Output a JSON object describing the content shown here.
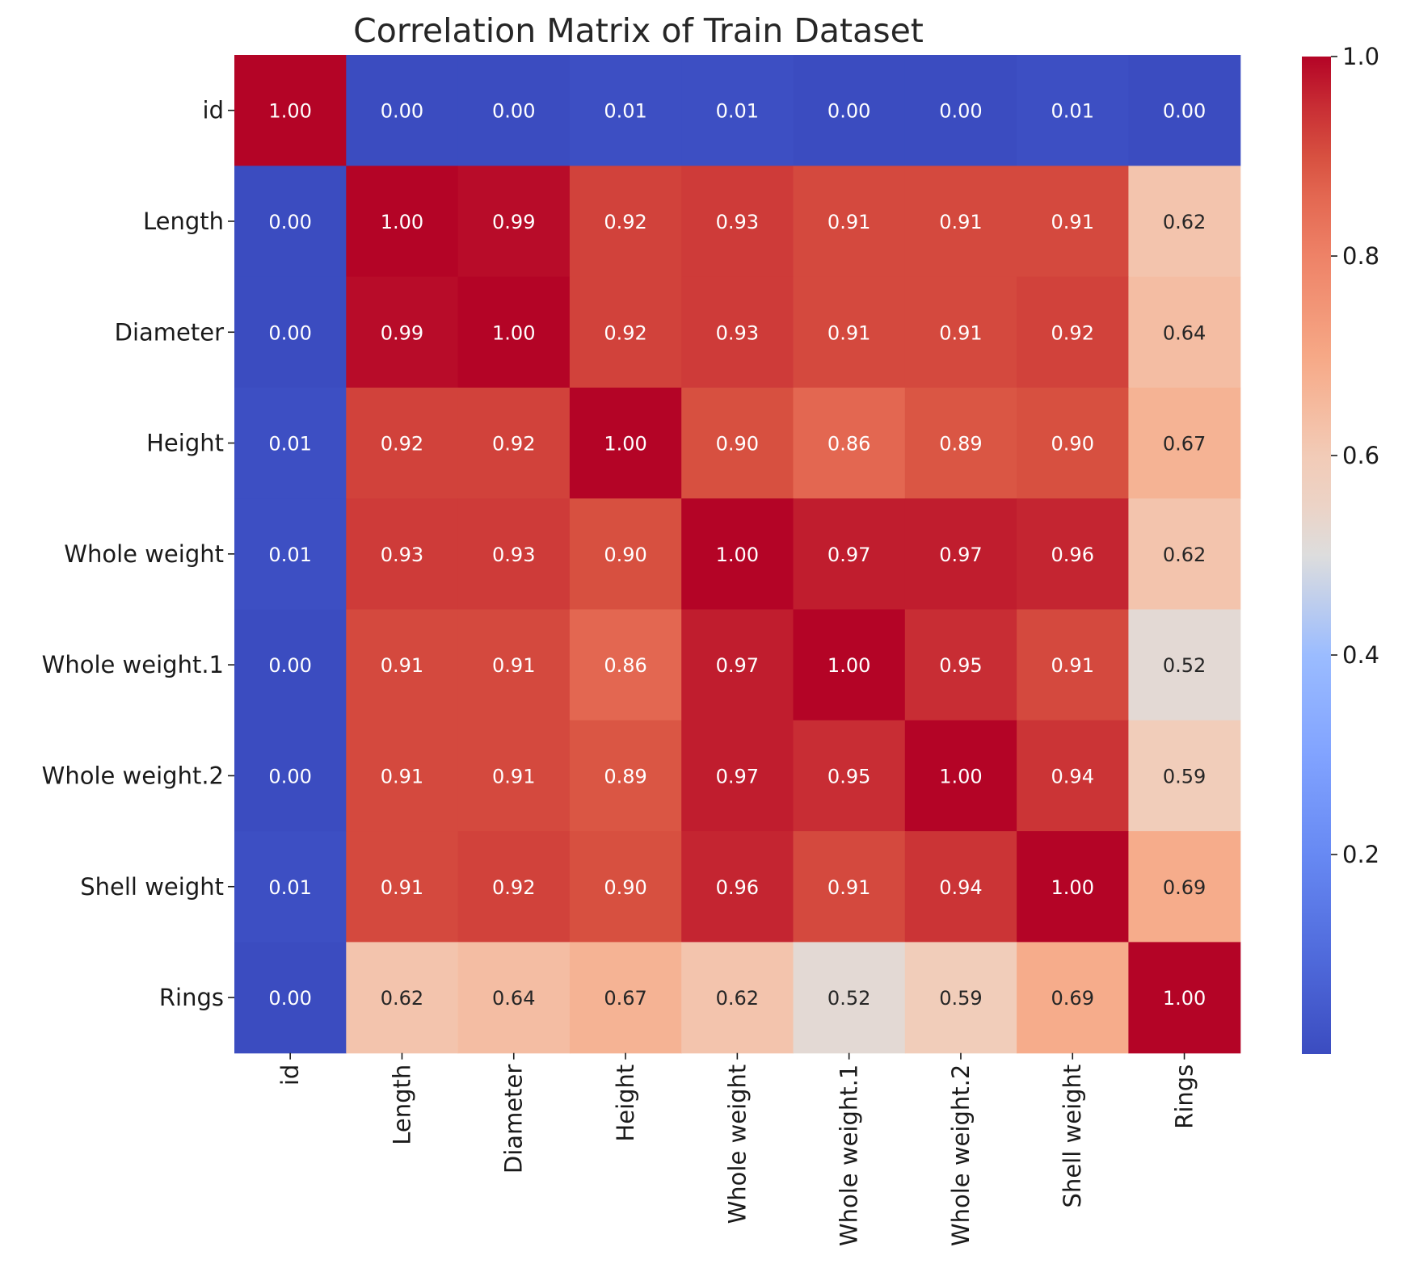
{
  "chart_data": {
    "type": "heatmap",
    "title": "Correlation Matrix of Train Dataset",
    "xlabel": "",
    "ylabel": "",
    "labels": [
      "id",
      "Length",
      "Diameter",
      "Height",
      "Whole weight",
      "Whole weight.1",
      "Whole weight.2",
      "Shell weight",
      "Rings"
    ],
    "values": [
      [
        1.0,
        0.0,
        0.0,
        0.01,
        0.01,
        0.0,
        0.0,
        0.01,
        0.0
      ],
      [
        0.0,
        1.0,
        0.99,
        0.92,
        0.93,
        0.91,
        0.91,
        0.91,
        0.62
      ],
      [
        0.0,
        0.99,
        1.0,
        0.92,
        0.93,
        0.91,
        0.91,
        0.92,
        0.64
      ],
      [
        0.01,
        0.92,
        0.92,
        1.0,
        0.9,
        0.86,
        0.89,
        0.9,
        0.67
      ],
      [
        0.01,
        0.93,
        0.93,
        0.9,
        1.0,
        0.97,
        0.97,
        0.96,
        0.62
      ],
      [
        0.0,
        0.91,
        0.91,
        0.86,
        0.97,
        1.0,
        0.95,
        0.91,
        0.52
      ],
      [
        0.0,
        0.91,
        0.91,
        0.89,
        0.97,
        0.95,
        1.0,
        0.94,
        0.59
      ],
      [
        0.01,
        0.91,
        0.92,
        0.9,
        0.96,
        0.91,
        0.94,
        1.0,
        0.69
      ],
      [
        0.0,
        0.62,
        0.64,
        0.67,
        0.62,
        0.52,
        0.59,
        0.69,
        1.0
      ]
    ],
    "colormap": "coolwarm",
    "color_range": [
      0.0,
      1.0
    ],
    "colorbar_ticks": [
      "0.2",
      "0.4",
      "0.6",
      "0.8",
      "1.0"
    ],
    "annotation_format": "0.00",
    "grid": false,
    "legend": "colorbar-right"
  }
}
